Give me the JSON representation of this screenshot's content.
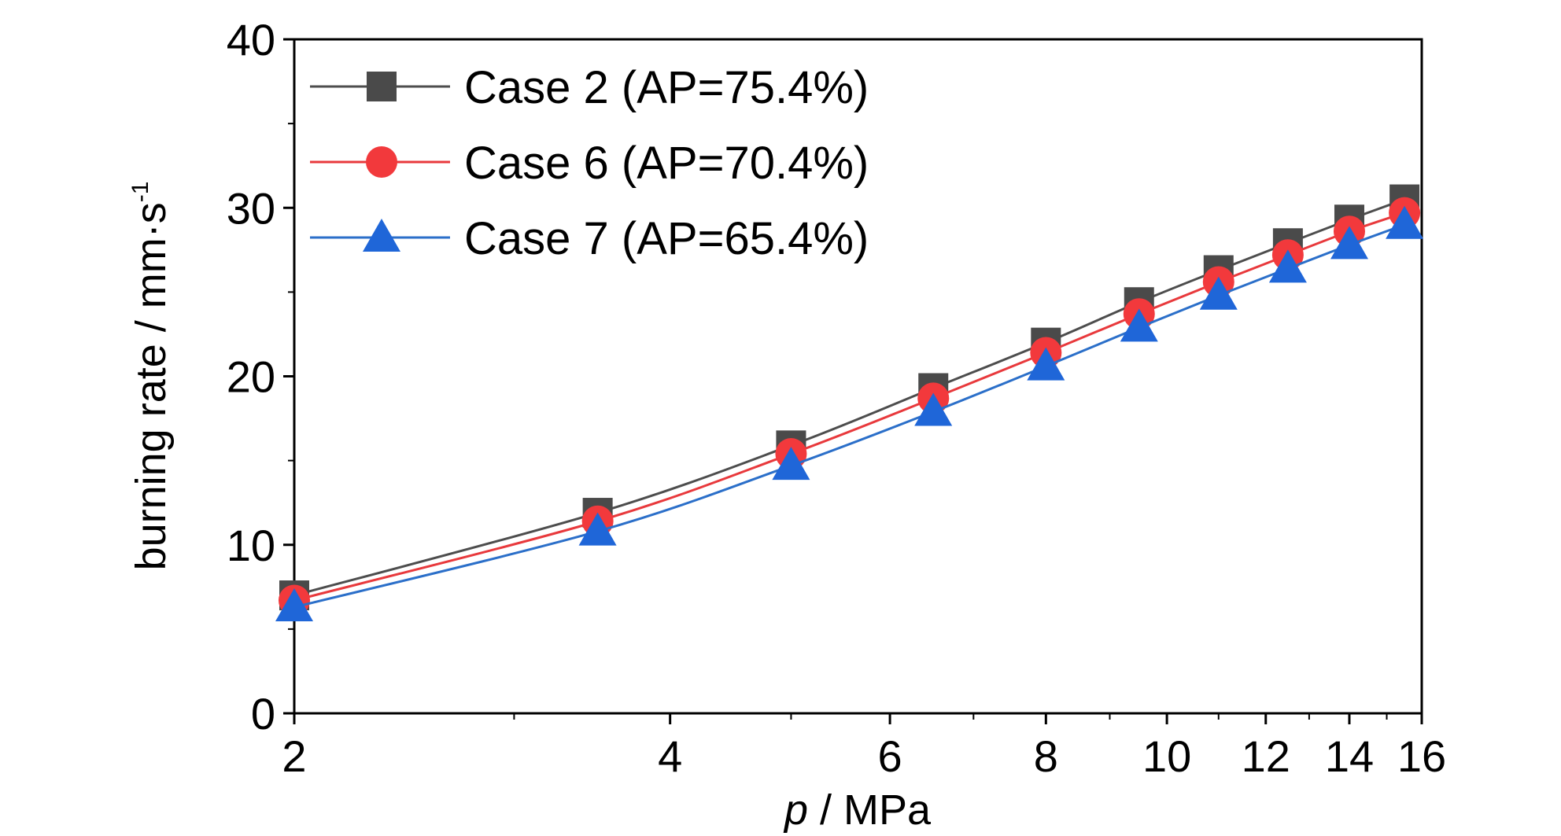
{
  "chart_data": {
    "type": "line",
    "xlabel_italic": "p",
    "xlabel_rest": " / MPa",
    "ylabel_main": "burning rate / mm·s",
    "ylabel_sup": "-1",
    "xscale": "log",
    "xlim": [
      2,
      16
    ],
    "ylim": [
      0,
      40
    ],
    "x_ticks": [
      2,
      4,
      6,
      8,
      10,
      12,
      14,
      16
    ],
    "y_ticks": [
      0,
      10,
      20,
      30,
      40
    ],
    "grid": false,
    "legend_position": "top-left",
    "x": [
      2,
      3.5,
      5,
      6.5,
      8,
      9.5,
      11,
      12.5,
      14,
      15.5
    ],
    "series": [
      {
        "name": "Case 2 (AP=75.4%)",
        "marker": "square",
        "color": "#4d4d4d",
        "marker_color": "#4a4a4a",
        "values": [
          7.0,
          11.9,
          15.9,
          19.3,
          22.0,
          24.4,
          26.3,
          27.9,
          29.3,
          30.5
        ]
      },
      {
        "name": "Case 6 (AP=70.4%)",
        "marker": "circle",
        "color": "#e8393c",
        "marker_color": "#f2393c",
        "values": [
          6.7,
          11.4,
          15.4,
          18.7,
          21.4,
          23.7,
          25.6,
          27.2,
          28.6,
          29.7
        ]
      },
      {
        "name": "Case 7 (AP=65.4%)",
        "marker": "triangle",
        "color": "#2b6fc9",
        "marker_color": "#1f66d8",
        "values": [
          6.3,
          10.8,
          14.7,
          17.9,
          20.6,
          22.9,
          24.8,
          26.4,
          27.8,
          29.0
        ]
      }
    ]
  }
}
